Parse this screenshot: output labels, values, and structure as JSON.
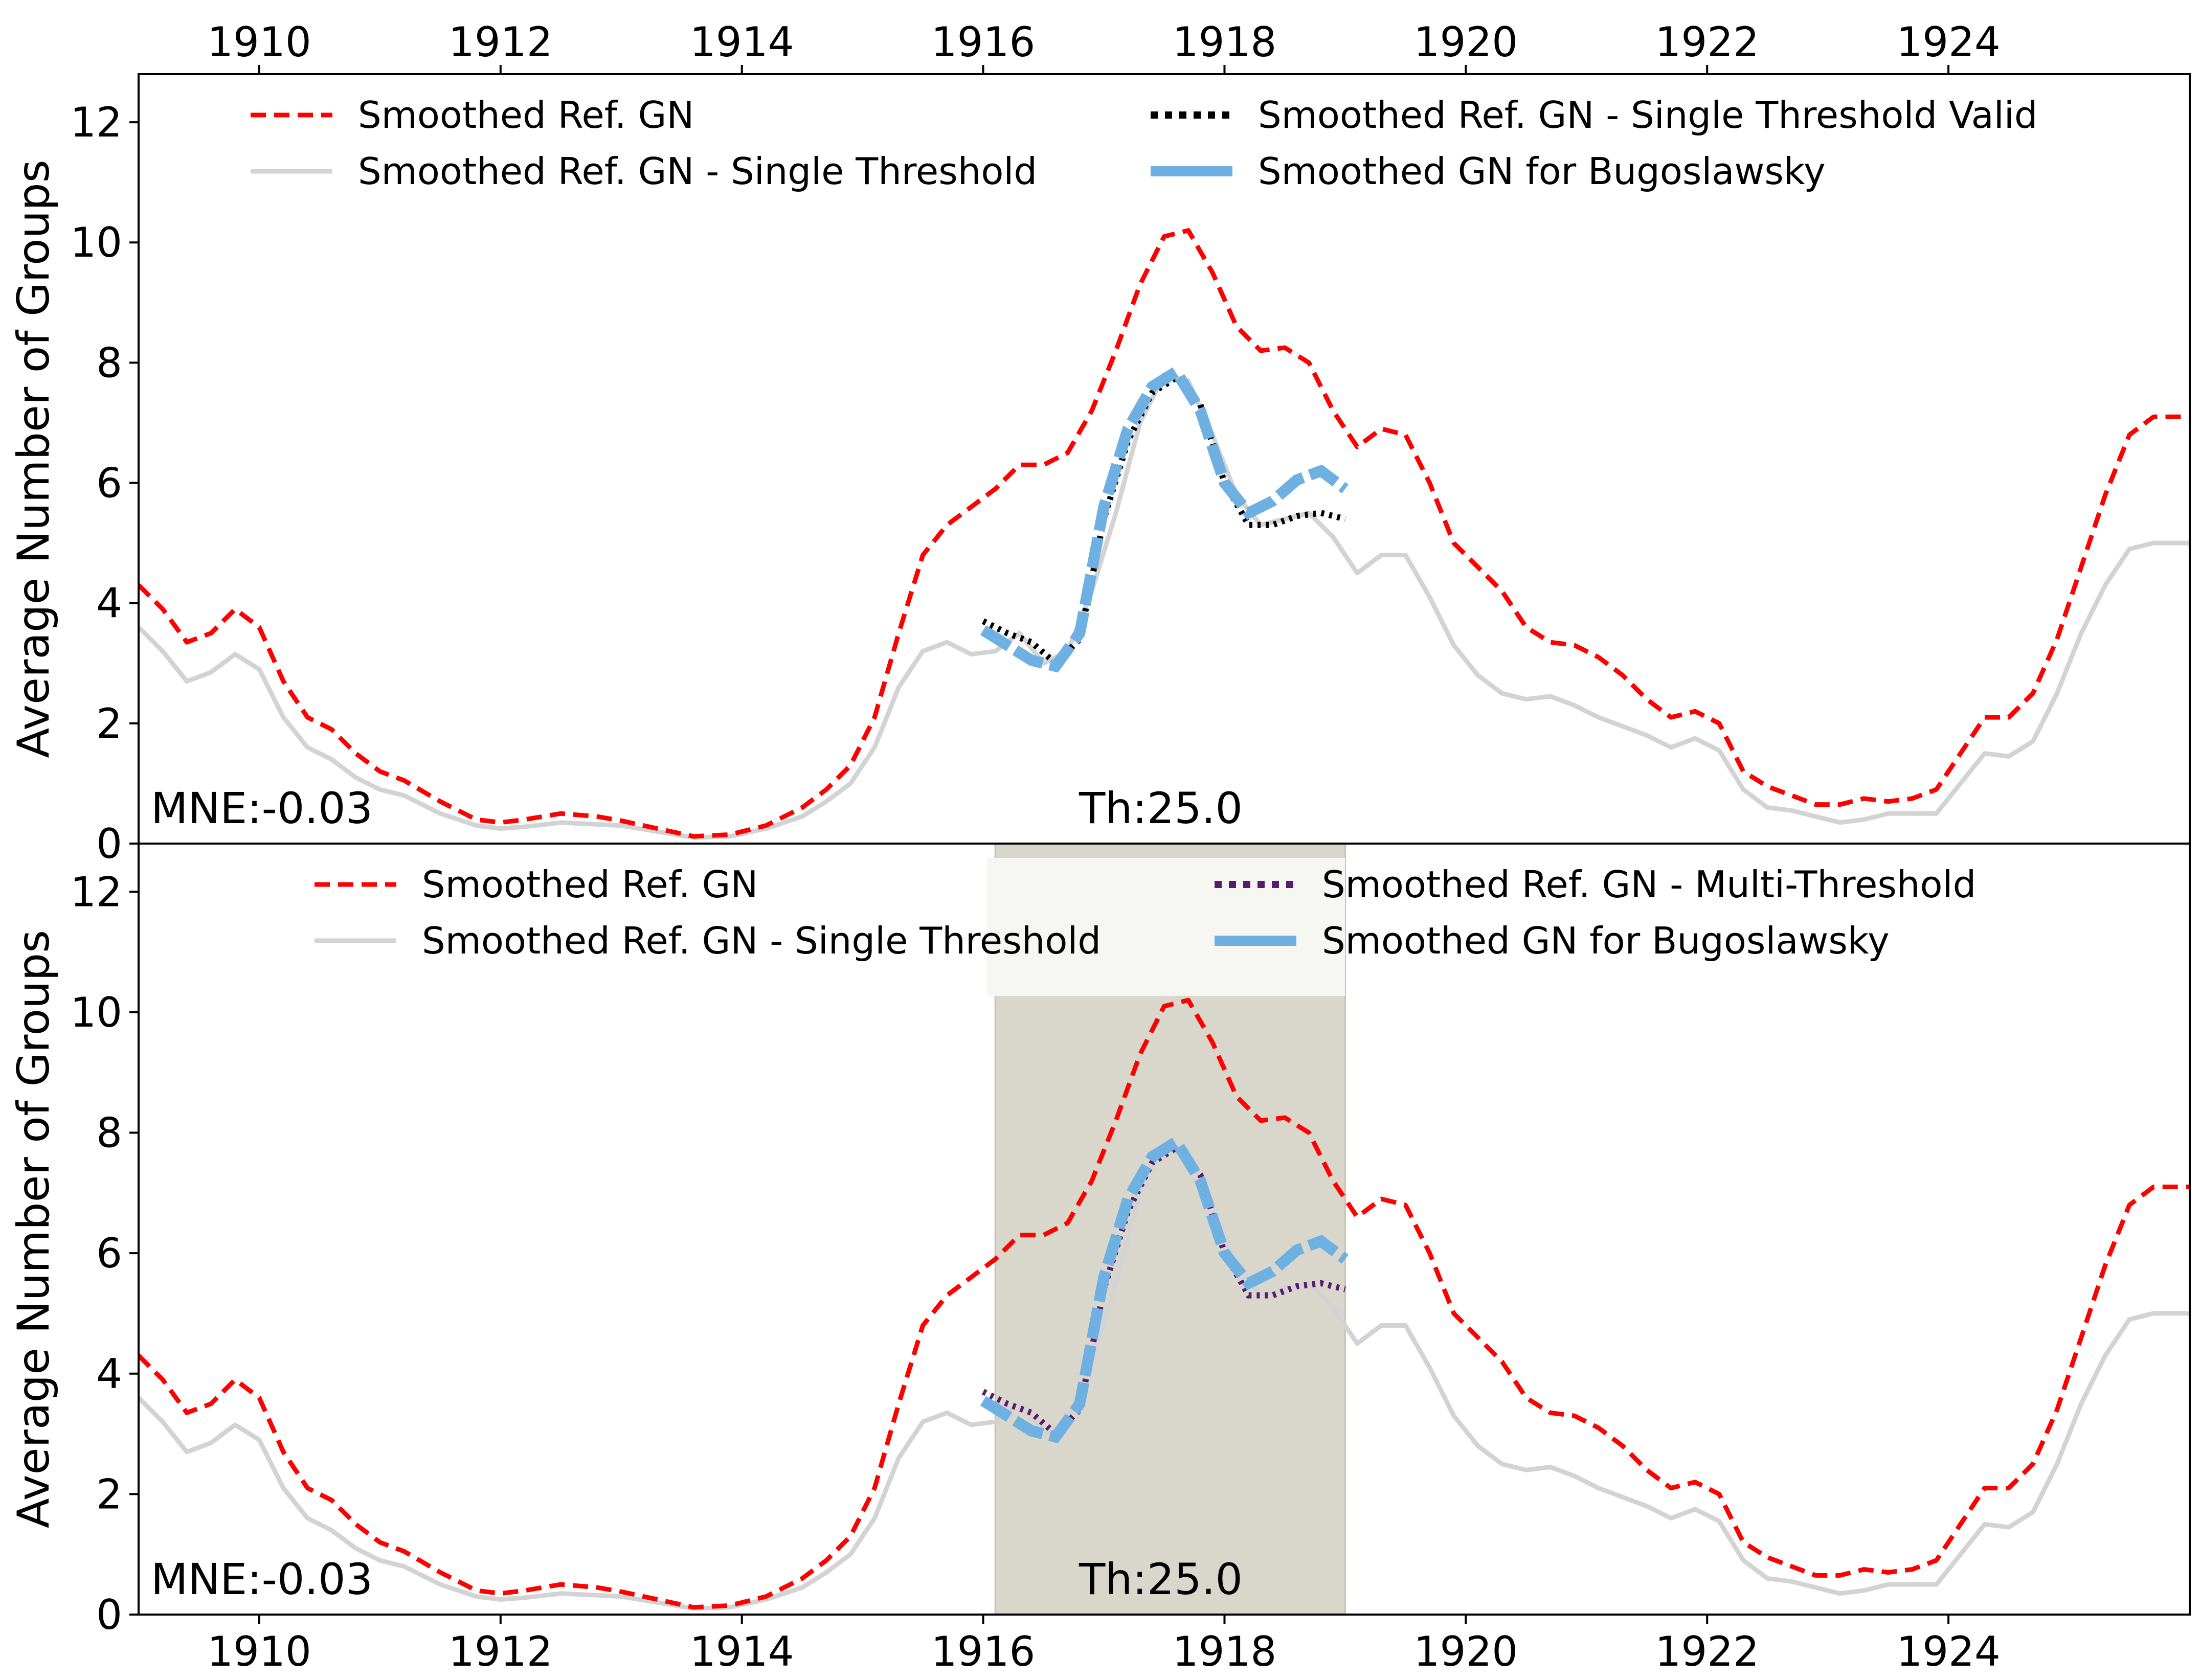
{
  "colors": {
    "ref": "#ff0000",
    "single": "#d3d3d3",
    "single_valid": "#000000",
    "multi": "#5a1a6e",
    "bugo": "#6fb0e3",
    "band": "#d9d6cb"
  },
  "chart_data": [
    {
      "type": "line",
      "panel": "top",
      "ylabel": "Average Number of Groups",
      "xlim": [
        1909.0,
        1926.0
      ],
      "ylim": [
        0,
        12.8
      ],
      "x_ticks": [
        "1910",
        "1912",
        "1914",
        "1916",
        "1918",
        "1920",
        "1922",
        "1924"
      ],
      "x_tick_values": [
        1910,
        1912,
        1914,
        1916,
        1918,
        1920,
        1922,
        1924
      ],
      "x_tick_position": "top",
      "y_ticks": [
        "0",
        "2",
        "4",
        "6",
        "8",
        "10",
        "12"
      ],
      "y_tick_values": [
        0,
        2,
        4,
        6,
        8,
        10,
        12
      ],
      "legend": [
        {
          "label": "Smoothed Ref. GN",
          "style": "dashed",
          "color_key": "ref"
        },
        {
          "label": "Smoothed Ref. GN - Single Threshold",
          "style": "solid",
          "color_key": "single"
        },
        {
          "label": "Smoothed Ref. GN - Single Threshold Valid",
          "style": "dotted",
          "color_key": "single_valid"
        },
        {
          "label": "Smoothed GN for Bugoslawsky",
          "style": "thick",
          "color_key": "bugo"
        }
      ],
      "annotations": {
        "mne": "MNE:-0.03",
        "th": "Th:25.0"
      },
      "overlay_series_key": "single_valid"
    },
    {
      "type": "line",
      "panel": "bottom",
      "ylabel": "Average Number of Groups",
      "xlim": [
        1909.0,
        1926.0
      ],
      "ylim": [
        0,
        12.8
      ],
      "x_ticks": [
        "1910",
        "1912",
        "1914",
        "1916",
        "1918",
        "1920",
        "1922",
        "1924"
      ],
      "x_tick_values": [
        1910,
        1912,
        1914,
        1916,
        1918,
        1920,
        1922,
        1924
      ],
      "x_tick_position": "bottom",
      "y_ticks": [
        "0",
        "2",
        "4",
        "6",
        "8",
        "10",
        "12"
      ],
      "y_tick_values": [
        0,
        2,
        4,
        6,
        8,
        10,
        12
      ],
      "legend": [
        {
          "label": "Smoothed Ref. GN",
          "style": "dashed",
          "color_key": "ref"
        },
        {
          "label": "Smoothed Ref. GN - Single Threshold",
          "style": "solid",
          "color_key": "single"
        },
        {
          "label": "Smoothed Ref. GN - Multi-Threshold",
          "style": "dotted",
          "color_key": "multi"
        },
        {
          "label": "Smoothed GN for Bugoslawsky",
          "style": "thick",
          "color_key": "bugo"
        }
      ],
      "annotations": {
        "mne": "MNE:-0.03",
        "th": "Th:25.0"
      },
      "shaded_region": [
        1916.1,
        1919.0
      ],
      "overlay_series_key": "multi"
    }
  ],
  "series": {
    "ref": {
      "x": [
        1909.0,
        1909.2,
        1909.4,
        1909.6,
        1909.8,
        1910.0,
        1910.2,
        1910.4,
        1910.6,
        1910.8,
        1911.0,
        1911.2,
        1911.5,
        1911.8,
        1912.0,
        1912.2,
        1912.5,
        1912.8,
        1913.0,
        1913.3,
        1913.6,
        1913.9,
        1914.2,
        1914.5,
        1914.7,
        1914.9,
        1915.1,
        1915.3,
        1915.5,
        1915.7,
        1915.9,
        1916.1,
        1916.3,
        1916.5,
        1916.7,
        1916.9,
        1917.1,
        1917.3,
        1917.5,
        1917.7,
        1917.9,
        1918.1,
        1918.3,
        1918.5,
        1918.7,
        1918.9,
        1919.1,
        1919.3,
        1919.5,
        1919.7,
        1919.9,
        1920.1,
        1920.3,
        1920.5,
        1920.7,
        1920.9,
        1921.1,
        1921.3,
        1921.5,
        1921.7,
        1921.9,
        1922.1,
        1922.3,
        1922.5,
        1922.7,
        1922.9,
        1923.1,
        1923.3,
        1923.5,
        1923.7,
        1923.9,
        1924.1,
        1924.3,
        1924.5,
        1924.7,
        1924.9,
        1925.1,
        1925.3,
        1925.5,
        1925.7,
        1925.9,
        1926.0
      ],
      "y": [
        4.3,
        3.9,
        3.35,
        3.5,
        3.9,
        3.6,
        2.7,
        2.1,
        1.9,
        1.5,
        1.2,
        1.05,
        0.7,
        0.4,
        0.35,
        0.4,
        0.5,
        0.45,
        0.38,
        0.25,
        0.12,
        0.15,
        0.3,
        0.6,
        0.9,
        1.3,
        2.1,
        3.5,
        4.8,
        5.3,
        5.6,
        5.9,
        6.3,
        6.3,
        6.5,
        7.2,
        8.2,
        9.3,
        10.1,
        10.2,
        9.5,
        8.6,
        8.2,
        8.25,
        8.0,
        7.2,
        6.6,
        6.9,
        6.8,
        6.0,
        5.0,
        4.6,
        4.2,
        3.6,
        3.35,
        3.3,
        3.1,
        2.8,
        2.4,
        2.1,
        2.2,
        2.0,
        1.2,
        0.95,
        0.8,
        0.65,
        0.65,
        0.75,
        0.7,
        0.75,
        0.9,
        1.5,
        2.1,
        2.1,
        2.5,
        3.4,
        4.6,
        5.8,
        6.8,
        7.1,
        7.1,
        7.1
      ]
    },
    "single": {
      "x": [
        1909.0,
        1909.2,
        1909.4,
        1909.6,
        1909.8,
        1910.0,
        1910.2,
        1910.4,
        1910.6,
        1910.8,
        1911.0,
        1911.2,
        1911.5,
        1911.8,
        1912.0,
        1912.2,
        1912.5,
        1912.8,
        1913.0,
        1913.3,
        1913.6,
        1913.9,
        1914.2,
        1914.5,
        1914.7,
        1914.9,
        1915.1,
        1915.3,
        1915.5,
        1915.7,
        1915.9,
        1916.1,
        1916.3,
        1916.5,
        1916.7,
        1916.9,
        1917.1,
        1917.3,
        1917.5,
        1917.7,
        1917.9,
        1918.1,
        1918.3,
        1918.5,
        1918.7,
        1918.9,
        1919.1,
        1919.3,
        1919.5,
        1919.7,
        1919.9,
        1920.1,
        1920.3,
        1920.5,
        1920.7,
        1920.9,
        1921.1,
        1921.3,
        1921.5,
        1921.7,
        1921.9,
        1922.1,
        1922.3,
        1922.5,
        1922.7,
        1922.9,
        1923.1,
        1923.3,
        1923.5,
        1923.7,
        1923.9,
        1924.1,
        1924.3,
        1924.5,
        1924.7,
        1924.9,
        1925.1,
        1925.3,
        1925.5,
        1925.7,
        1925.9,
        1926.0
      ],
      "y": [
        3.6,
        3.2,
        2.7,
        2.85,
        3.15,
        2.9,
        2.1,
        1.6,
        1.4,
        1.1,
        0.9,
        0.8,
        0.5,
        0.3,
        0.25,
        0.28,
        0.35,
        0.32,
        0.3,
        0.2,
        0.1,
        0.12,
        0.25,
        0.45,
        0.7,
        1.0,
        1.6,
        2.6,
        3.2,
        3.35,
        3.15,
        3.2,
        3.5,
        3.0,
        3.2,
        4.2,
        5.5,
        7.0,
        7.8,
        7.7,
        6.8,
        5.8,
        5.3,
        5.4,
        5.5,
        5.1,
        4.5,
        4.8,
        4.8,
        4.1,
        3.3,
        2.8,
        2.5,
        2.4,
        2.45,
        2.3,
        2.1,
        1.95,
        1.8,
        1.6,
        1.75,
        1.55,
        0.9,
        0.6,
        0.55,
        0.45,
        0.35,
        0.4,
        0.5,
        0.5,
        0.5,
        1.0,
        1.5,
        1.45,
        1.7,
        2.5,
        3.5,
        4.3,
        4.9,
        5.0,
        5.0,
        5.0
      ]
    },
    "overlay": {
      "x": [
        1916.0,
        1916.2,
        1916.4,
        1916.6,
        1916.8,
        1917.0,
        1917.2,
        1917.4,
        1917.6,
        1917.8,
        1918.0,
        1918.2,
        1918.4,
        1918.6,
        1918.8,
        1919.0
      ],
      "y": [
        3.7,
        3.5,
        3.35,
        3.0,
        3.4,
        5.4,
        6.7,
        7.5,
        7.75,
        7.3,
        6.0,
        5.3,
        5.3,
        5.45,
        5.5,
        5.4
      ]
    },
    "bugo": {
      "x": [
        1916.0,
        1916.2,
        1916.4,
        1916.6,
        1916.8,
        1917.0,
        1917.2,
        1917.4,
        1917.6,
        1917.8,
        1918.0,
        1918.2,
        1918.4,
        1918.6,
        1918.8,
        1919.0
      ],
      "y": [
        3.55,
        3.3,
        3.05,
        2.95,
        3.5,
        5.6,
        6.9,
        7.6,
        7.85,
        7.2,
        6.0,
        5.5,
        5.7,
        6.05,
        6.2,
        5.9
      ]
    }
  }
}
